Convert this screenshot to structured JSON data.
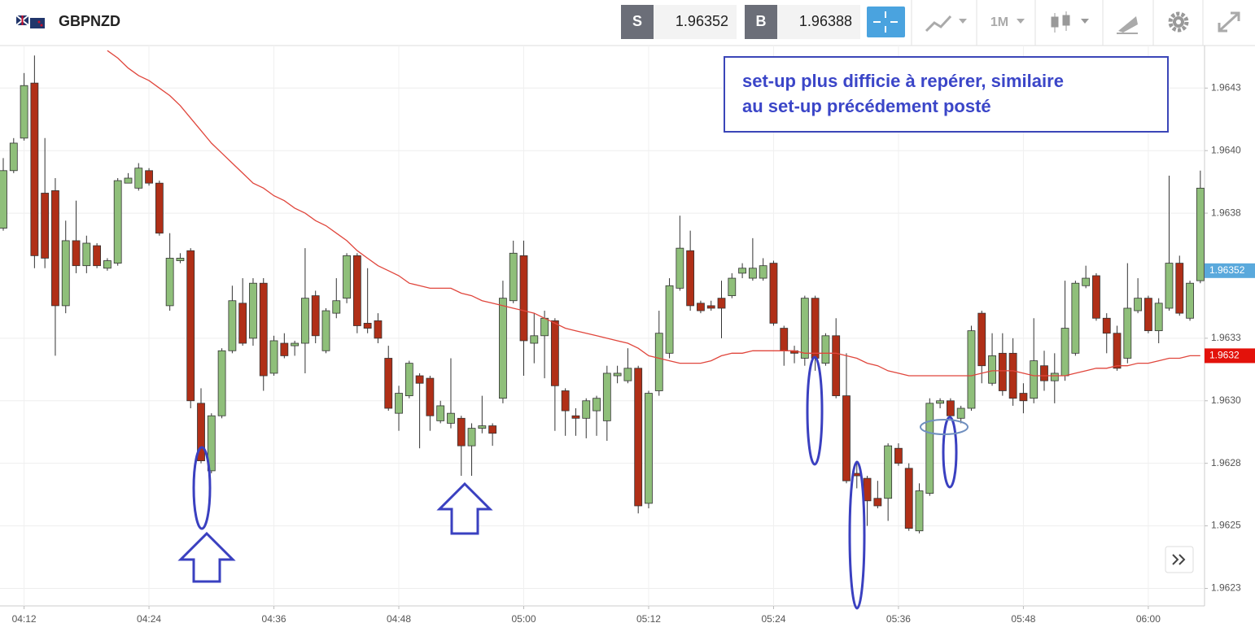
{
  "toolbar": {
    "symbol": "GBPNZD",
    "sell_label": "S",
    "sell_price": "1.96352",
    "buy_label": "B",
    "buy_price": "1.96388",
    "timeframe": "1M"
  },
  "chart_data": {
    "type": "candlestick",
    "annotation": [
      "set-up plus difficie à repérer, similaire",
      "au set-up précédement posté"
    ],
    "categories": [
      null,
      null,
      "04:12",
      null,
      null,
      null,
      null,
      null,
      null,
      null,
      null,
      null,
      null,
      null,
      "04:24",
      null,
      null,
      null,
      null,
      null,
      null,
      null,
      null,
      null,
      null,
      null,
      "04:36",
      null,
      null,
      null,
      null,
      null,
      null,
      null,
      null,
      null,
      null,
      null,
      "04:48",
      null,
      null,
      null,
      null,
      null,
      null,
      null,
      null,
      null,
      null,
      null,
      "05:00",
      null,
      null,
      null,
      null,
      null,
      null,
      null,
      null,
      null,
      null,
      null,
      "05:12",
      null,
      null,
      null,
      null,
      null,
      null,
      null,
      null,
      null,
      null,
      null,
      "05:24",
      null,
      null,
      null,
      null,
      null,
      null,
      null,
      null,
      null,
      null,
      null,
      "05:36",
      null,
      null,
      null,
      null,
      null,
      null,
      null,
      null,
      null,
      null,
      null,
      "05:48",
      null,
      null,
      null,
      null,
      null,
      null,
      null,
      null,
      null,
      null,
      null,
      "06:00",
      null,
      null,
      null,
      null,
      null
    ],
    "open": [
      1.96369,
      1.96392,
      1.96405,
      1.96427,
      1.96383,
      1.96384,
      1.96338,
      1.96364,
      1.96354,
      1.96362,
      1.96353,
      1.96355,
      1.96387,
      1.96385,
      1.96392,
      1.96387,
      1.96338,
      1.96356,
      1.9636,
      1.96299,
      1.96272,
      1.96294,
      1.9632,
      1.96339,
      1.96325,
      1.96347,
      1.96311,
      1.96323,
      1.96322,
      1.96323,
      1.96342,
      1.9632,
      1.96335,
      1.96341,
      1.96358,
      1.96331,
      1.96332,
      1.96317,
      1.96295,
      1.96302,
      1.9631,
      1.96309,
      1.96292,
      1.96291,
      1.96293,
      1.96282,
      1.96289,
      1.9629,
      1.96301,
      1.9634,
      1.96358,
      1.96323,
      1.96326,
      1.96332,
      1.96304,
      1.96294,
      1.96293,
      1.96296,
      1.96292,
      1.9631,
      1.96308,
      1.96313,
      1.96259,
      1.96304,
      1.96319,
      1.96345,
      1.9636,
      1.96339,
      1.96338,
      1.96341,
      1.96342,
      1.96351,
      1.96349,
      1.96349,
      1.96355,
      1.96329,
      1.9632,
      1.96317,
      1.96341,
      1.96315,
      1.96326,
      1.96302,
      1.96271,
      1.96269,
      1.96261,
      1.96261,
      1.96281,
      1.96273,
      1.96248,
      1.96263,
      1.96299,
      1.963,
      1.96293,
      1.96297,
      1.96335,
      1.96307,
      1.96319,
      1.96319,
      1.96303,
      1.96301,
      1.96314,
      1.96308,
      1.9631,
      1.96319,
      1.96346,
      1.9635,
      1.96333,
      1.96327,
      1.96317,
      1.96336,
      1.96341,
      1.96328,
      1.96337,
      1.96355,
      1.96333,
      1.96348
    ],
    "high": [
      1.96397,
      1.96405,
      1.96431,
      1.96438,
      1.96405,
      1.96389,
      1.96372,
      1.9638,
      1.96366,
      1.96363,
      1.96357,
      1.96389,
      1.96391,
      1.96395,
      1.96393,
      1.96388,
      1.96367,
      1.96359,
      1.96361,
      1.96305,
      1.96295,
      1.96321,
      1.96346,
      1.96349,
      1.96349,
      1.96349,
      1.96326,
      1.96327,
      1.96324,
      1.96361,
      1.96344,
      1.96337,
      1.96349,
      1.96359,
      1.96359,
      1.96353,
      1.96335,
      1.96322,
      1.96306,
      1.96316,
      1.96311,
      1.9631,
      1.963,
      1.96317,
      1.96294,
      1.96291,
      1.96302,
      1.96291,
      1.96348,
      1.96364,
      1.96364,
      1.96335,
      1.96336,
      1.96333,
      1.96305,
      1.96297,
      1.96301,
      1.96302,
      1.96314,
      1.96314,
      1.96321,
      1.96314,
      1.96304,
      1.96336,
      1.96349,
      1.96374,
      1.96368,
      1.9634,
      1.9634,
      1.96348,
      1.96351,
      1.96355,
      1.96365,
      1.96357,
      1.96356,
      1.9633,
      1.96322,
      1.96342,
      1.96342,
      1.96327,
      1.96333,
      1.96319,
      1.96276,
      1.9627,
      1.96268,
      1.96283,
      1.96283,
      1.96275,
      1.96267,
      1.96301,
      1.96301,
      1.96301,
      1.96298,
      1.9633,
      1.96336,
      1.96327,
      1.96327,
      1.96325,
      1.96307,
      1.96333,
      1.9632,
      1.96319,
      1.96348,
      1.96348,
      1.96354,
      1.96351,
      1.96335,
      1.9633,
      1.96355,
      1.96349,
      1.96342,
      1.96341,
      1.9639,
      1.96358,
      1.96348,
      1.96392
    ],
    "low": [
      1.96368,
      1.96391,
      1.96404,
      1.96353,
      1.96353,
      1.96318,
      1.96335,
      1.96351,
      1.96351,
      1.96353,
      1.96352,
      1.96354,
      1.96387,
      1.96384,
      1.96386,
      1.96366,
      1.96336,
      1.96355,
      1.96297,
      1.96275,
      1.96271,
      1.96293,
      1.96319,
      1.96322,
      1.96322,
      1.96304,
      1.9631,
      1.96317,
      1.96318,
      1.96311,
      1.96323,
      1.96319,
      1.96333,
      1.96339,
      1.96327,
      1.96327,
      1.96323,
      1.96296,
      1.96288,
      1.96301,
      1.96281,
      1.96288,
      1.96291,
      1.96289,
      1.9627,
      1.9627,
      1.96287,
      1.96282,
      1.96299,
      1.96339,
      1.9631,
      1.96315,
      1.96309,
      1.96288,
      1.96286,
      1.96286,
      1.96285,
      1.96286,
      1.96284,
      1.96307,
      1.96307,
      1.96255,
      1.96257,
      1.96302,
      1.96317,
      1.96344,
      1.96336,
      1.96335,
      1.96336,
      1.96325,
      1.96341,
      1.96349,
      1.96348,
      1.96348,
      1.9633,
      1.96314,
      1.96315,
      1.96314,
      1.96312,
      1.96314,
      1.96301,
      1.96267,
      1.96265,
      1.9625,
      1.96257,
      1.96252,
      1.96274,
      1.96248,
      1.96247,
      1.96262,
      1.96297,
      1.96293,
      1.96291,
      1.96296,
      1.96307,
      1.96306,
      1.96302,
      1.96298,
      1.96295,
      1.96299,
      1.96304,
      1.96299,
      1.96308,
      1.96318,
      1.96345,
      1.96332,
      1.96319,
      1.96312,
      1.96315,
      1.96335,
      1.96327,
      1.96323,
      1.96336,
      1.96334,
      1.96332,
      1.96347
    ],
    "close": [
      1.96392,
      1.96403,
      1.96426,
      1.96358,
      1.96357,
      1.96338,
      1.96364,
      1.96354,
      1.96363,
      1.96354,
      1.96356,
      1.96388,
      1.96389,
      1.96393,
      1.96387,
      1.96367,
      1.96357,
      1.96357,
      1.963,
      1.96276,
      1.96294,
      1.9632,
      1.9634,
      1.96323,
      1.96347,
      1.9631,
      1.96324,
      1.96318,
      1.96323,
      1.96341,
      1.96326,
      1.96336,
      1.9634,
      1.96358,
      1.9633,
      1.96329,
      1.96325,
      1.96297,
      1.96303,
      1.96315,
      1.96307,
      1.96294,
      1.96298,
      1.96295,
      1.96282,
      1.96289,
      1.9629,
      1.96287,
      1.96341,
      1.96359,
      1.96324,
      1.96326,
      1.96333,
      1.96306,
      1.96296,
      1.96293,
      1.963,
      1.96301,
      1.96311,
      1.96311,
      1.96313,
      1.96258,
      1.96303,
      1.96327,
      1.96346,
      1.96361,
      1.96338,
      1.96336,
      1.96337,
      1.96337,
      1.96349,
      1.96353,
      1.96353,
      1.96354,
      1.96331,
      1.9632,
      1.96319,
      1.96341,
      1.96317,
      1.96326,
      1.96302,
      1.96268,
      1.9627,
      1.9626,
      1.96258,
      1.96282,
      1.96275,
      1.96249,
      1.96264,
      1.96299,
      1.963,
      1.96294,
      1.96297,
      1.96328,
      1.96314,
      1.96318,
      1.96304,
      1.96301,
      1.963,
      1.96316,
      1.96308,
      1.96311,
      1.96329,
      1.96347,
      1.96349,
      1.96333,
      1.96327,
      1.96313,
      1.96337,
      1.96341,
      1.96328,
      1.96339,
      1.96355,
      1.96335,
      1.96347,
      1.96385
    ],
    "ma": [
      null,
      null,
      null,
      null,
      null,
      null,
      null,
      null,
      null,
      null,
      1.9644,
      1.96437,
      1.96433,
      1.9643,
      1.96428,
      1.96425,
      1.96422,
      1.96418,
      1.96413,
      1.96408,
      1.96403,
      1.96399,
      1.96395,
      1.96391,
      1.96387,
      1.96385,
      1.96382,
      1.9638,
      1.96377,
      1.96375,
      1.96372,
      1.9637,
      1.96367,
      1.96364,
      1.9636,
      1.96357,
      1.96354,
      1.96352,
      1.9635,
      1.96347,
      1.96346,
      1.96345,
      1.96345,
      1.96345,
      1.96343,
      1.96342,
      1.9634,
      1.96339,
      1.96338,
      1.96337,
      1.96336,
      1.96335,
      1.96333,
      1.96331,
      1.96329,
      1.96328,
      1.96327,
      1.96326,
      1.96325,
      1.96324,
      1.96323,
      1.96321,
      1.96318,
      1.96317,
      1.96316,
      1.96315,
      1.96315,
      1.96315,
      1.96316,
      1.96318,
      1.96319,
      1.96319,
      1.9632,
      1.9632,
      1.9632,
      1.9632,
      1.9632,
      1.96319,
      1.96319,
      1.96319,
      1.96319,
      1.96318,
      1.96317,
      1.96315,
      1.96314,
      1.96312,
      1.96311,
      1.9631,
      1.9631,
      1.9631,
      1.9631,
      1.9631,
      1.9631,
      1.9631,
      1.96311,
      1.96312,
      1.96312,
      1.96312,
      1.96311,
      1.9631,
      1.9631,
      1.9631,
      1.9631,
      1.96311,
      1.96312,
      1.96313,
      1.96313,
      1.96314,
      1.96314,
      1.96315,
      1.96315,
      1.96316,
      1.96317,
      1.96317,
      1.96318,
      1.96318
    ],
    "up_color": "#8fbf7a",
    "down_color": "#b02f17",
    "ma_color": "#e0463c",
    "last_price": 1.96352,
    "ma_last": {
      "value": 1.96318,
      "label": "1.9632"
    },
    "ylim": [
      1.96218,
      1.96442
    ],
    "yticks": [
      {
        "value": 1.96425,
        "label": "1.9643"
      },
      {
        "value": 1.964,
        "label": "1.9640"
      },
      {
        "value": 1.96375,
        "label": "1.9638"
      },
      {
        "value": 1.96325,
        "label": "1.9633"
      },
      {
        "value": 1.963,
        "label": "1.9630"
      },
      {
        "value": 1.96275,
        "label": "1.9628"
      },
      1.9625,
      {
        "value": 1.96225,
        "label": "1.9623"
      }
    ],
    "grid": true
  }
}
